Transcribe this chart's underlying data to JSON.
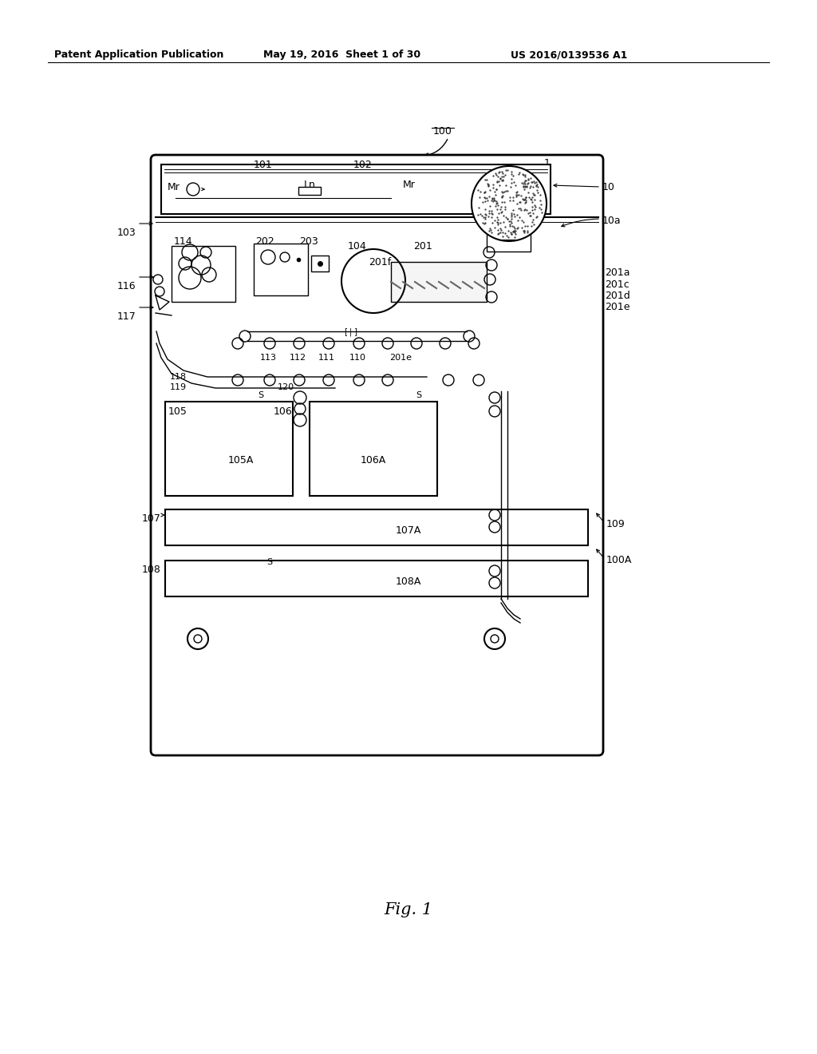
{
  "bg_color": "#ffffff",
  "header_left": "Patent Application Publication",
  "header_mid": "May 19, 2016  Sheet 1 of 30",
  "header_right": "US 2016/0139536 A1",
  "fig_label": "Fig. 1",
  "black": "#000000",
  "lw_main": 1.5,
  "lw_thin": 1.0,
  "lw_thick": 2.0,
  "fs_label": 9,
  "fs_header": 9
}
